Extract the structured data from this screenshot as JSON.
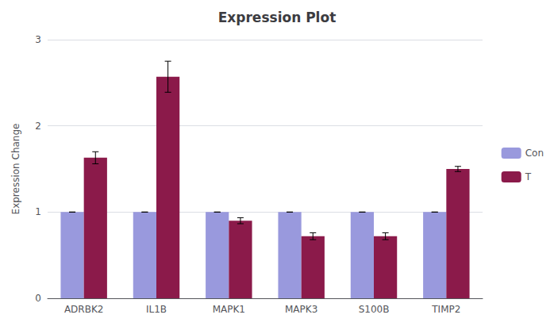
{
  "chart_data": {
    "type": "bar",
    "title": "Expression Plot",
    "ylabel": "Expression Change",
    "categories": [
      "ADRBK2",
      "IL1B",
      "MAPK1",
      "MAPK3",
      "S100B",
      "TIMP2"
    ],
    "series": [
      {
        "name": "Con",
        "color": "#9999DD",
        "values": [
          1.0,
          1.0,
          1.0,
          1.0,
          1.0,
          1.0
        ],
        "errors": [
          0.0,
          0.0,
          0.0,
          0.0,
          0.0,
          0.0
        ]
      },
      {
        "name": "T",
        "color": "#8B1A4A",
        "values": [
          1.63,
          2.57,
          0.9,
          0.72,
          0.72,
          1.5
        ],
        "errors": [
          0.07,
          0.18,
          0.035,
          0.04,
          0.04,
          0.03
        ]
      }
    ],
    "ylim": [
      0,
      3
    ],
    "yticks": [
      0,
      1,
      2,
      3
    ],
    "grid": true,
    "legend": "right"
  }
}
